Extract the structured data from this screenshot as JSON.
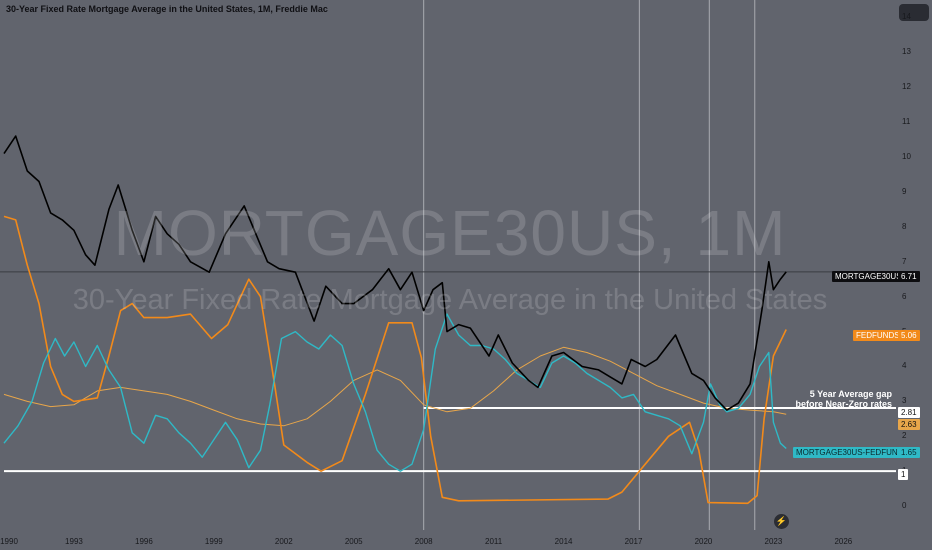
{
  "title": "30-Year Fixed Rate Mortgage Average in the United States, 1M, Freddie Mac",
  "watermark": {
    "symbol": "MORTGAGE30US, 1M",
    "description": "30-Year Fixed Rate Mortgage Average in the United States"
  },
  "annotation": {
    "line1": "5 Year Average gap",
    "line2": "before Near-Zero rates"
  },
  "colors": {
    "background": "#61646d",
    "mortgage": "#000000",
    "fedfunds": "#f28a1a",
    "spread": "#2fb9c6",
    "average": "#e8a64a",
    "reference": "#ffffff"
  },
  "price_labels": {
    "mortgage": {
      "name": "MORTGAGE30US",
      "value": "6.71"
    },
    "fedfunds": {
      "name": "FEDFUNDS",
      "value": "5.06"
    },
    "gap": {
      "value": "2.81"
    },
    "average": {
      "value": "2.63"
    },
    "spread": {
      "name": "MORTGAGE30US-FEDFUNDS",
      "value": "1.65"
    },
    "baseline": {
      "value": "1"
    }
  },
  "icons": {
    "replay": "lightning-icon"
  },
  "chart_data": {
    "type": "line",
    "xlim": [
      1990.0,
      2028.0
    ],
    "ylim": [
      -0.6,
      14.5
    ],
    "y_ticks": [
      "0",
      "1",
      "2",
      "3",
      "4",
      "5",
      "6",
      "7",
      "8",
      "9",
      "10",
      "11",
      "12",
      "13",
      "14"
    ],
    "x_ticks": [
      "1990",
      "1993",
      "1996",
      "1999",
      "2002",
      "2005",
      "2008",
      "2011",
      "2014",
      "2017",
      "2020",
      "2023",
      "2026"
    ],
    "x_tick_values": [
      1990,
      1993,
      1996,
      1999,
      2002,
      2005,
      2008,
      2011,
      2014,
      2017,
      2020,
      2023,
      2026
    ],
    "vertical_markers": [
      2008.0,
      2017.25,
      2020.25,
      2022.2
    ],
    "horizontal_lines": [
      {
        "value": 2.81,
        "from": 2008.0
      },
      {
        "value": 1.0,
        "from": 1990.0
      }
    ],
    "series": [
      {
        "name": "MORTGAGE30US",
        "color": "#000000",
        "points": [
          [
            1990.0,
            10.1
          ],
          [
            1990.5,
            10.6
          ],
          [
            1991.0,
            9.6
          ],
          [
            1991.5,
            9.3
          ],
          [
            1992.0,
            8.4
          ],
          [
            1992.5,
            8.2
          ],
          [
            1993.0,
            7.9
          ],
          [
            1993.5,
            7.2
          ],
          [
            1993.9,
            6.9
          ],
          [
            1994.5,
            8.5
          ],
          [
            1994.9,
            9.2
          ],
          [
            1995.5,
            7.9
          ],
          [
            1996.0,
            7.0
          ],
          [
            1996.5,
            8.3
          ],
          [
            1997.0,
            7.8
          ],
          [
            1997.5,
            7.5
          ],
          [
            1998.0,
            7.0
          ],
          [
            1998.8,
            6.7
          ],
          [
            1999.5,
            7.8
          ],
          [
            2000.3,
            8.6
          ],
          [
            2000.8,
            7.8
          ],
          [
            2001.3,
            7.0
          ],
          [
            2001.8,
            6.8
          ],
          [
            2002.5,
            6.7
          ],
          [
            2003.3,
            5.3
          ],
          [
            2003.8,
            6.3
          ],
          [
            2004.5,
            5.8
          ],
          [
            2005.0,
            5.8
          ],
          [
            2005.8,
            6.2
          ],
          [
            2006.5,
            6.8
          ],
          [
            2007.0,
            6.2
          ],
          [
            2007.5,
            6.7
          ],
          [
            2008.0,
            5.6
          ],
          [
            2008.4,
            6.2
          ],
          [
            2008.8,
            6.4
          ],
          [
            2009.0,
            5.0
          ],
          [
            2009.5,
            5.2
          ],
          [
            2010.0,
            5.1
          ],
          [
            2010.8,
            4.3
          ],
          [
            2011.2,
            4.9
          ],
          [
            2011.8,
            4.1
          ],
          [
            2012.5,
            3.6
          ],
          [
            2012.9,
            3.4
          ],
          [
            2013.5,
            4.3
          ],
          [
            2014.0,
            4.4
          ],
          [
            2014.8,
            4.0
          ],
          [
            2015.5,
            3.9
          ],
          [
            2016.0,
            3.7
          ],
          [
            2016.5,
            3.5
          ],
          [
            2016.9,
            4.2
          ],
          [
            2017.5,
            4.0
          ],
          [
            2018.0,
            4.2
          ],
          [
            2018.8,
            4.9
          ],
          [
            2019.5,
            3.8
          ],
          [
            2020.0,
            3.6
          ],
          [
            2020.5,
            3.1
          ],
          [
            2021.0,
            2.75
          ],
          [
            2021.5,
            2.95
          ],
          [
            2022.0,
            3.5
          ],
          [
            2022.5,
            5.6
          ],
          [
            2022.8,
            7.0
          ],
          [
            2023.0,
            6.2
          ],
          [
            2023.3,
            6.5
          ],
          [
            2023.55,
            6.71
          ]
        ]
      },
      {
        "name": "FEDFUNDS",
        "color": "#f28a1a",
        "points": [
          [
            1990.0,
            8.3
          ],
          [
            1990.5,
            8.2
          ],
          [
            1991.0,
            6.9
          ],
          [
            1991.5,
            5.8
          ],
          [
            1992.0,
            4.0
          ],
          [
            1992.5,
            3.2
          ],
          [
            1993.0,
            3.0
          ],
          [
            1994.0,
            3.1
          ],
          [
            1994.5,
            4.3
          ],
          [
            1995.0,
            5.6
          ],
          [
            1995.5,
            5.8
          ],
          [
            1996.0,
            5.4
          ],
          [
            1997.0,
            5.4
          ],
          [
            1998.0,
            5.5
          ],
          [
            1998.9,
            4.8
          ],
          [
            1999.6,
            5.2
          ],
          [
            2000.5,
            6.5
          ],
          [
            2001.0,
            6.0
          ],
          [
            2001.6,
            3.5
          ],
          [
            2002.0,
            1.75
          ],
          [
            2003.0,
            1.25
          ],
          [
            2003.6,
            1.0
          ],
          [
            2004.5,
            1.3
          ],
          [
            2005.5,
            3.2
          ],
          [
            2006.5,
            5.25
          ],
          [
            2007.5,
            5.25
          ],
          [
            2007.9,
            4.25
          ],
          [
            2008.3,
            2.0
          ],
          [
            2008.8,
            0.25
          ],
          [
            2009.5,
            0.15
          ],
          [
            2015.9,
            0.2
          ],
          [
            2016.5,
            0.4
          ],
          [
            2017.5,
            1.2
          ],
          [
            2018.5,
            2.0
          ],
          [
            2019.4,
            2.4
          ],
          [
            2019.8,
            1.6
          ],
          [
            2020.2,
            0.1
          ],
          [
            2021.9,
            0.08
          ],
          [
            2022.3,
            0.3
          ],
          [
            2022.6,
            2.5
          ],
          [
            2023.0,
            4.3
          ],
          [
            2023.55,
            5.06
          ]
        ]
      },
      {
        "name": "MORTGAGE30US-FEDFUNDS",
        "color": "#2fb9c6",
        "points": [
          [
            1990.0,
            1.8
          ],
          [
            1990.6,
            2.3
          ],
          [
            1991.2,
            3.0
          ],
          [
            1991.7,
            4.1
          ],
          [
            1992.2,
            4.8
          ],
          [
            1992.6,
            4.3
          ],
          [
            1993.0,
            4.7
          ],
          [
            1993.5,
            4.0
          ],
          [
            1994.0,
            4.6
          ],
          [
            1994.5,
            3.9
          ],
          [
            1995.0,
            3.4
          ],
          [
            1995.5,
            2.1
          ],
          [
            1996.0,
            1.8
          ],
          [
            1996.5,
            2.6
          ],
          [
            1997.0,
            2.5
          ],
          [
            1997.5,
            2.1
          ],
          [
            1998.0,
            1.8
          ],
          [
            1998.5,
            1.4
          ],
          [
            1999.0,
            1.9
          ],
          [
            1999.5,
            2.4
          ],
          [
            2000.0,
            1.9
          ],
          [
            2000.5,
            1.1
          ],
          [
            2001.0,
            1.6
          ],
          [
            2001.4,
            2.9
          ],
          [
            2001.9,
            4.8
          ],
          [
            2002.5,
            5.0
          ],
          [
            2003.0,
            4.7
          ],
          [
            2003.5,
            4.5
          ],
          [
            2004.0,
            4.9
          ],
          [
            2004.5,
            4.6
          ],
          [
            2005.0,
            3.5
          ],
          [
            2005.5,
            2.7
          ],
          [
            2006.0,
            1.6
          ],
          [
            2006.5,
            1.2
          ],
          [
            2007.0,
            1.0
          ],
          [
            2007.5,
            1.2
          ],
          [
            2008.0,
            2.2
          ],
          [
            2008.5,
            4.5
          ],
          [
            2009.0,
            5.5
          ],
          [
            2009.5,
            4.9
          ],
          [
            2010.0,
            4.6
          ],
          [
            2010.5,
            4.6
          ],
          [
            2011.0,
            4.5
          ],
          [
            2011.5,
            4.2
          ],
          [
            2012.0,
            3.8
          ],
          [
            2012.5,
            3.6
          ],
          [
            2013.0,
            3.4
          ],
          [
            2013.5,
            4.1
          ],
          [
            2014.0,
            4.3
          ],
          [
            2014.5,
            4.1
          ],
          [
            2015.0,
            3.8
          ],
          [
            2015.5,
            3.6
          ],
          [
            2016.0,
            3.4
          ],
          [
            2016.5,
            3.1
          ],
          [
            2017.0,
            3.2
          ],
          [
            2017.5,
            2.7
          ],
          [
            2018.0,
            2.6
          ],
          [
            2018.5,
            2.5
          ],
          [
            2019.0,
            2.3
          ],
          [
            2019.5,
            1.5
          ],
          [
            2020.0,
            2.4
          ],
          [
            2020.3,
            3.5
          ],
          [
            2020.7,
            2.9
          ],
          [
            2021.0,
            2.7
          ],
          [
            2021.5,
            2.8
          ],
          [
            2022.0,
            3.2
          ],
          [
            2022.4,
            4.0
          ],
          [
            2022.8,
            4.4
          ],
          [
            2023.0,
            2.4
          ],
          [
            2023.3,
            1.8
          ],
          [
            2023.55,
            1.65
          ]
        ]
      },
      {
        "name": "5Y average",
        "color": "#e8a64a",
        "points": [
          [
            1990.0,
            3.2
          ],
          [
            1991.0,
            3.0
          ],
          [
            1992.0,
            2.85
          ],
          [
            1993.0,
            2.9
          ],
          [
            1994.0,
            3.3
          ],
          [
            1995.0,
            3.4
          ],
          [
            1996.0,
            3.3
          ],
          [
            1997.0,
            3.2
          ],
          [
            1998.0,
            3.0
          ],
          [
            1999.0,
            2.75
          ],
          [
            2000.0,
            2.5
          ],
          [
            2001.0,
            2.35
          ],
          [
            2002.0,
            2.3
          ],
          [
            2003.0,
            2.5
          ],
          [
            2004.0,
            3.0
          ],
          [
            2005.0,
            3.6
          ],
          [
            2006.0,
            3.9
          ],
          [
            2007.0,
            3.6
          ],
          [
            2008.0,
            2.9
          ],
          [
            2009.0,
            2.7
          ],
          [
            2010.0,
            2.8
          ],
          [
            2011.0,
            3.3
          ],
          [
            2012.0,
            3.9
          ],
          [
            2013.0,
            4.3
          ],
          [
            2014.0,
            4.55
          ],
          [
            2015.0,
            4.4
          ],
          [
            2016.0,
            4.15
          ],
          [
            2017.0,
            3.8
          ],
          [
            2018.0,
            3.45
          ],
          [
            2019.0,
            3.2
          ],
          [
            2020.0,
            2.95
          ],
          [
            2021.0,
            2.8
          ],
          [
            2022.0,
            2.75
          ],
          [
            2023.0,
            2.7
          ],
          [
            2023.55,
            2.63
          ]
        ]
      }
    ]
  }
}
